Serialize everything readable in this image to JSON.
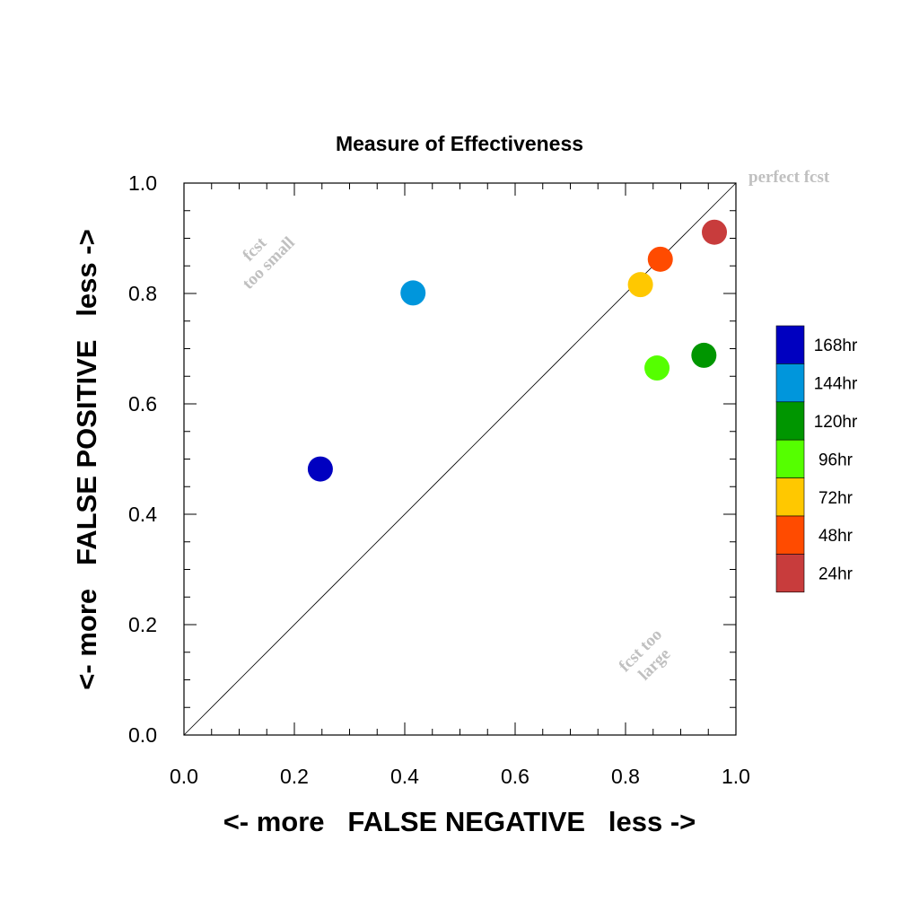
{
  "chart_data": {
    "type": "scatter",
    "title": "Measure of Effectiveness",
    "xlabel": "<- more   FALSE NEGATIVE   less ->",
    "ylabel": "<- more   FALSE POSITIVE   less ->",
    "xlim": [
      0.0,
      1.0
    ],
    "ylim": [
      0.0,
      1.0
    ],
    "x_ticks": [
      "0.0",
      "0.2",
      "0.4",
      "0.6",
      "0.8",
      "1.0"
    ],
    "y_ticks": [
      "0.0",
      "0.2",
      "0.4",
      "0.6",
      "0.8",
      "1.0"
    ],
    "grid": false,
    "diagonal_line": true,
    "legend_position": "right",
    "annotations": {
      "perfect": "perfect fcst",
      "too_small_line1": "fcst",
      "too_small_line2": "too small",
      "too_large_line1": "fcst too",
      "too_large_line2": "large"
    },
    "series": [
      {
        "name": "168hr",
        "color": "#0000c0",
        "x": 0.247,
        "y": 0.482
      },
      {
        "name": "144hr",
        "color": "#0096dc",
        "x": 0.415,
        "y": 0.801
      },
      {
        "name": "120hr",
        "color": "#009600",
        "x": 0.942,
        "y": 0.688
      },
      {
        "name": "96hr",
        "color": "#55ff00",
        "x": 0.857,
        "y": 0.665
      },
      {
        "name": "72hr",
        "color": "#ffc800",
        "x": 0.827,
        "y": 0.816
      },
      {
        "name": "48hr",
        "color": "#ff4b00",
        "x": 0.863,
        "y": 0.862
      },
      {
        "name": "24hr",
        "color": "#c83c3c",
        "x": 0.961,
        "y": 0.911
      }
    ]
  }
}
